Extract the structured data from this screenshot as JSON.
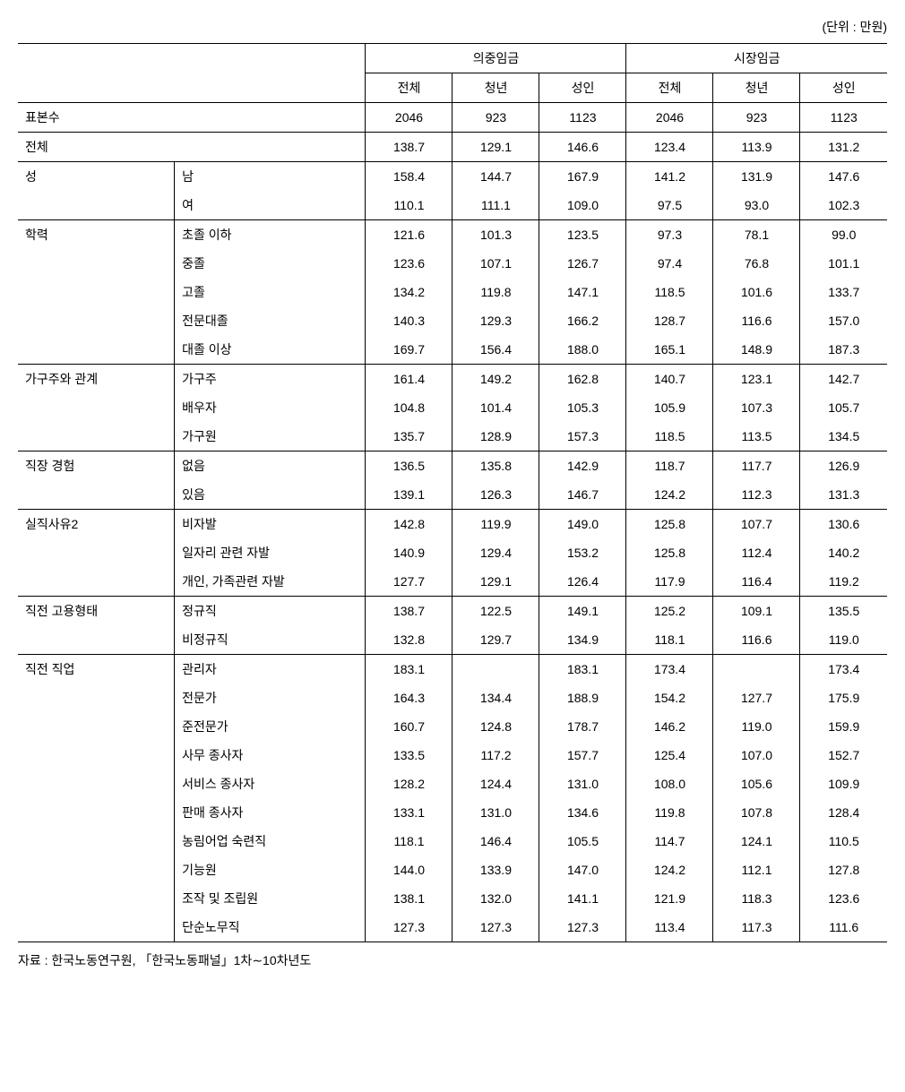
{
  "unit_label": "(단위 : 만원)",
  "header_group_1": "의중임금",
  "header_group_2": "시장임금",
  "sub_headers": [
    "전체",
    "청년",
    "성인",
    "전체",
    "청년",
    "성인"
  ],
  "row_sample_label": "표본수",
  "row_sample_values": [
    "2046",
    "923",
    "1123",
    "2046",
    "923",
    "1123"
  ],
  "row_total_label": "전체",
  "row_total_values": [
    "138.7",
    "129.1",
    "146.6",
    "123.4",
    "113.9",
    "131.2"
  ],
  "groups": [
    {
      "name": "성",
      "rows": [
        {
          "label": "남",
          "values": [
            "158.4",
            "144.7",
            "167.9",
            "141.2",
            "131.9",
            "147.6"
          ]
        },
        {
          "label": "여",
          "values": [
            "110.1",
            "111.1",
            "109.0",
            "97.5",
            "93.0",
            "102.3"
          ]
        }
      ]
    },
    {
      "name": "학력",
      "rows": [
        {
          "label": "초졸 이하",
          "values": [
            "121.6",
            "101.3",
            "123.5",
            "97.3",
            "78.1",
            "99.0"
          ]
        },
        {
          "label": "중졸",
          "values": [
            "123.6",
            "107.1",
            "126.7",
            "97.4",
            "76.8",
            "101.1"
          ]
        },
        {
          "label": "고졸",
          "values": [
            "134.2",
            "119.8",
            "147.1",
            "118.5",
            "101.6",
            "133.7"
          ]
        },
        {
          "label": "전문대졸",
          "values": [
            "140.3",
            "129.3",
            "166.2",
            "128.7",
            "116.6",
            "157.0"
          ]
        },
        {
          "label": "대졸 이상",
          "values": [
            "169.7",
            "156.4",
            "188.0",
            "165.1",
            "148.9",
            "187.3"
          ]
        }
      ]
    },
    {
      "name": "가구주와 관계",
      "rows": [
        {
          "label": "가구주",
          "values": [
            "161.4",
            "149.2",
            "162.8",
            "140.7",
            "123.1",
            "142.7"
          ]
        },
        {
          "label": "배우자",
          "values": [
            "104.8",
            "101.4",
            "105.3",
            "105.9",
            "107.3",
            "105.7"
          ]
        },
        {
          "label": "가구원",
          "values": [
            "135.7",
            "128.9",
            "157.3",
            "118.5",
            "113.5",
            "134.5"
          ]
        }
      ]
    },
    {
      "name": "직장 경험",
      "rows": [
        {
          "label": "없음",
          "values": [
            "136.5",
            "135.8",
            "142.9",
            "118.7",
            "117.7",
            "126.9"
          ]
        },
        {
          "label": "있음",
          "values": [
            "139.1",
            "126.3",
            "146.7",
            "124.2",
            "112.3",
            "131.3"
          ]
        }
      ]
    },
    {
      "name": "실직사유2",
      "rows": [
        {
          "label": "비자발",
          "values": [
            "142.8",
            "119.9",
            "149.0",
            "125.8",
            "107.7",
            "130.6"
          ]
        },
        {
          "label": "일자리 관련 자발",
          "values": [
            "140.9",
            "129.4",
            "153.2",
            "125.8",
            "112.4",
            "140.2"
          ]
        },
        {
          "label": "개인, 가족관련 자발",
          "values": [
            "127.7",
            "129.1",
            "126.4",
            "117.9",
            "116.4",
            "119.2"
          ]
        }
      ]
    },
    {
      "name": "직전 고용형태",
      "rows": [
        {
          "label": "정규직",
          "values": [
            "138.7",
            "122.5",
            "149.1",
            "125.2",
            "109.1",
            "135.5"
          ]
        },
        {
          "label": "비정규직",
          "values": [
            "132.8",
            "129.7",
            "134.9",
            "118.1",
            "116.6",
            "119.0"
          ]
        }
      ]
    },
    {
      "name": "직전 직업",
      "rows": [
        {
          "label": "관리자",
          "values": [
            "183.1",
            "",
            "183.1",
            "173.4",
            "",
            "173.4"
          ]
        },
        {
          "label": "전문가",
          "values": [
            "164.3",
            "134.4",
            "188.9",
            "154.2",
            "127.7",
            "175.9"
          ]
        },
        {
          "label": "준전문가",
          "values": [
            "160.7",
            "124.8",
            "178.7",
            "146.2",
            "119.0",
            "159.9"
          ]
        },
        {
          "label": "사무 종사자",
          "values": [
            "133.5",
            "117.2",
            "157.7",
            "125.4",
            "107.0",
            "152.7"
          ]
        },
        {
          "label": "서비스 종사자",
          "values": [
            "128.2",
            "124.4",
            "131.0",
            "108.0",
            "105.6",
            "109.9"
          ]
        },
        {
          "label": "판매 종사자",
          "values": [
            "133.1",
            "131.0",
            "134.6",
            "119.8",
            "107.8",
            "128.4"
          ]
        },
        {
          "label": "농림어업 숙련직",
          "values": [
            "118.1",
            "146.4",
            "105.5",
            "114.7",
            "124.1",
            "110.5"
          ]
        },
        {
          "label": "기능원",
          "values": [
            "144.0",
            "133.9",
            "147.0",
            "124.2",
            "112.1",
            "127.8"
          ]
        },
        {
          "label": "조작 및 조립원",
          "values": [
            "138.1",
            "132.0",
            "141.1",
            "121.9",
            "118.3",
            "123.6"
          ]
        },
        {
          "label": "단순노무직",
          "values": [
            "127.3",
            "127.3",
            "127.3",
            "113.4",
            "117.3",
            "111.6"
          ]
        }
      ]
    }
  ],
  "footnote": "자료 : 한국노동연구원, 「한국노동패널」1차∼10차년도"
}
